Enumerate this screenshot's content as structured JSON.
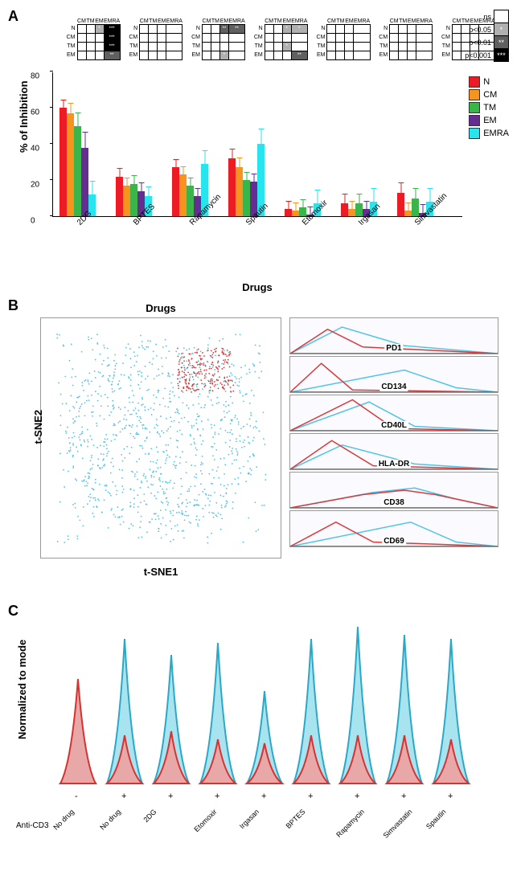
{
  "panelA": {
    "label": "A",
    "y_axis_label": "% of Inhibition",
    "x_axis_title": "Drugs",
    "ylim": [
      0,
      80
    ],
    "ytick_step": 20,
    "series": [
      {
        "name": "N",
        "color": "#ed1c24"
      },
      {
        "name": "CM",
        "color": "#f7941d"
      },
      {
        "name": "TM",
        "color": "#39b54a"
      },
      {
        "name": "EM",
        "color": "#662d91"
      },
      {
        "name": "EMRA",
        "color": "#27e5ef"
      }
    ],
    "drugs": [
      {
        "name": "2DG",
        "values": [
          60,
          57,
          50,
          38,
          12
        ],
        "err": [
          5,
          6,
          8,
          9,
          8
        ]
      },
      {
        "name": "BPTES",
        "values": [
          22,
          17,
          18,
          14,
          11
        ],
        "err": [
          5,
          5,
          5,
          5,
          6
        ]
      },
      {
        "name": "Rapamycin",
        "values": [
          27,
          23,
          17,
          11,
          29
        ],
        "err": [
          5,
          5,
          5,
          5,
          8
        ]
      },
      {
        "name": "Spautin",
        "values": [
          32,
          27,
          20,
          19,
          40
        ],
        "err": [
          6,
          6,
          5,
          5,
          9
        ]
      },
      {
        "name": "Etomoxir",
        "values": [
          4,
          3,
          5,
          1,
          7
        ],
        "err": [
          5,
          5,
          5,
          5,
          8
        ]
      },
      {
        "name": "Irgasan",
        "values": [
          7,
          4,
          7,
          4,
          8
        ],
        "err": [
          6,
          5,
          6,
          5,
          8
        ]
      },
      {
        "name": "Simvastatin",
        "values": [
          13,
          3,
          10,
          2,
          8
        ],
        "err": [
          6,
          5,
          6,
          5,
          8
        ]
      }
    ],
    "sig_rows": [
      "N",
      "CM",
      "TM",
      "EM"
    ],
    "sig_cols": [
      "CM",
      "TM",
      "EM",
      "EMRA"
    ],
    "sig_levels": {
      "ns": {
        "bg": "#ffffff",
        "text": ""
      },
      "p05": {
        "bg": "#b0b0b0",
        "text": "*"
      },
      "p01": {
        "bg": "#606060",
        "text": "**"
      },
      "p001": {
        "bg": "#000000",
        "text": "***"
      }
    },
    "sig_legend": [
      {
        "label": "ns",
        "bg": "#ffffff",
        "text": ""
      },
      {
        "label": "p<0.05",
        "bg": "#b0b0b0",
        "text": "*"
      },
      {
        "label": "p<0.01",
        "bg": "#606060",
        "text": "**"
      },
      {
        "label": "p<0.001",
        "bg": "#000000",
        "text": "***"
      }
    ],
    "sig_matrices": [
      [
        [
          "",
          "",
          "*",
          "***"
        ],
        [
          "",
          "",
          "",
          "***"
        ],
        [
          "",
          "",
          "",
          "***"
        ],
        [
          "",
          "",
          "",
          "**"
        ]
      ],
      [
        [
          "",
          "",
          "",
          ""
        ],
        [
          "",
          "",
          "",
          ""
        ],
        [
          "",
          "",
          "",
          ""
        ],
        [
          "",
          "",
          "",
          ""
        ]
      ],
      [
        [
          "",
          "",
          "**",
          "**"
        ],
        [
          "",
          "",
          "",
          ""
        ],
        [
          "",
          "",
          "",
          ""
        ],
        [
          "",
          "",
          "*",
          ""
        ]
      ],
      [
        [
          "",
          "",
          "*",
          "*"
        ],
        [
          "",
          "",
          "",
          ""
        ],
        [
          "",
          "",
          "*",
          ""
        ],
        [
          "",
          "",
          "",
          "**"
        ]
      ],
      [
        [
          "",
          "",
          "",
          ""
        ],
        [
          "",
          "",
          "",
          ""
        ],
        [
          "",
          "",
          "",
          ""
        ],
        [
          "",
          "",
          "",
          ""
        ]
      ],
      [
        [
          "",
          "",
          "",
          ""
        ],
        [
          "",
          "",
          "",
          ""
        ],
        [
          "",
          "",
          "",
          ""
        ],
        [
          "",
          "",
          "",
          ""
        ]
      ],
      [
        [
          "",
          "",
          "",
          ""
        ],
        [
          "",
          "",
          "",
          ""
        ],
        [
          "",
          "",
          "",
          ""
        ],
        [
          "",
          "",
          "",
          ""
        ]
      ]
    ]
  },
  "panelB": {
    "label": "B",
    "tsne_x": "t-SNE1",
    "tsne_y": "t-SNE2",
    "tsne_title": "Drugs",
    "cluster_colors": {
      "main": "#4fc4e8",
      "highlight": "#d93a3a"
    },
    "markers": [
      "PD1",
      "CD134",
      "CD40L",
      "HLA-DR",
      "CD38",
      "CD69"
    ],
    "histo_curves": {
      "PD1": {
        "red": [
          [
            0,
            0
          ],
          [
            18,
            55
          ],
          [
            35,
            15
          ],
          [
            100,
            0
          ]
        ],
        "blue": [
          [
            0,
            0
          ],
          [
            25,
            60
          ],
          [
            55,
            18
          ],
          [
            100,
            0
          ]
        ]
      },
      "CD134": {
        "red": [
          [
            0,
            0
          ],
          [
            15,
            65
          ],
          [
            30,
            5
          ],
          [
            100,
            0
          ]
        ],
        "blue": [
          [
            0,
            0
          ],
          [
            55,
            50
          ],
          [
            80,
            10
          ],
          [
            100,
            0
          ]
        ]
      },
      "CD40L": {
        "red": [
          [
            0,
            0
          ],
          [
            30,
            70
          ],
          [
            50,
            5
          ],
          [
            100,
            0
          ]
        ],
        "blue": [
          [
            0,
            0
          ],
          [
            38,
            65
          ],
          [
            60,
            10
          ],
          [
            100,
            0
          ]
        ]
      },
      "HLA-DR": {
        "red": [
          [
            0,
            0
          ],
          [
            20,
            65
          ],
          [
            40,
            8
          ],
          [
            100,
            0
          ]
        ],
        "blue": [
          [
            0,
            0
          ],
          [
            25,
            55
          ],
          [
            60,
            12
          ],
          [
            100,
            0
          ]
        ]
      },
      "CD38": {
        "red": [
          [
            0,
            0
          ],
          [
            35,
            30
          ],
          [
            55,
            40
          ],
          [
            70,
            30
          ],
          [
            100,
            0
          ]
        ],
        "blue": [
          [
            0,
            0
          ],
          [
            40,
            35
          ],
          [
            60,
            45
          ],
          [
            80,
            20
          ],
          [
            100,
            0
          ]
        ]
      },
      "CD69": {
        "red": [
          [
            0,
            0
          ],
          [
            22,
            55
          ],
          [
            40,
            10
          ],
          [
            100,
            0
          ]
        ],
        "blue": [
          [
            0,
            0
          ],
          [
            58,
            55
          ],
          [
            80,
            10
          ],
          [
            100,
            0
          ]
        ]
      }
    }
  },
  "panelC": {
    "label": "C",
    "y_axis_label": "Normalized to mode",
    "anticd3_label": "Anti-CD3",
    "conditions": [
      {
        "drug": "No drug",
        "cd3": "-",
        "blue_h": 70,
        "red_h": 130
      },
      {
        "drug": "No drug",
        "cd3": "+",
        "blue_h": 180,
        "red_h": 60
      },
      {
        "drug": "2DG",
        "cd3": "+",
        "blue_h": 160,
        "red_h": 65
      },
      {
        "drug": "Etomoxir",
        "cd3": "+",
        "blue_h": 175,
        "red_h": 55
      },
      {
        "drug": "Irgasan",
        "cd3": "+",
        "blue_h": 115,
        "red_h": 50
      },
      {
        "drug": "BPTES",
        "cd3": "+",
        "blue_h": 180,
        "red_h": 60
      },
      {
        "drug": "Rapamycin",
        "cd3": "+",
        "blue_h": 195,
        "red_h": 60
      },
      {
        "drug": "Simvastatin",
        "cd3": "+",
        "blue_h": 185,
        "red_h": 60
      },
      {
        "drug": "Spautin",
        "cd3": "+",
        "blue_h": 180,
        "red_h": 55
      }
    ],
    "colors": {
      "blue_fill": "#a8e4f0",
      "blue_stroke": "#2aa8c8",
      "red_fill": "#e8a8a8",
      "red_stroke": "#d93030"
    }
  }
}
